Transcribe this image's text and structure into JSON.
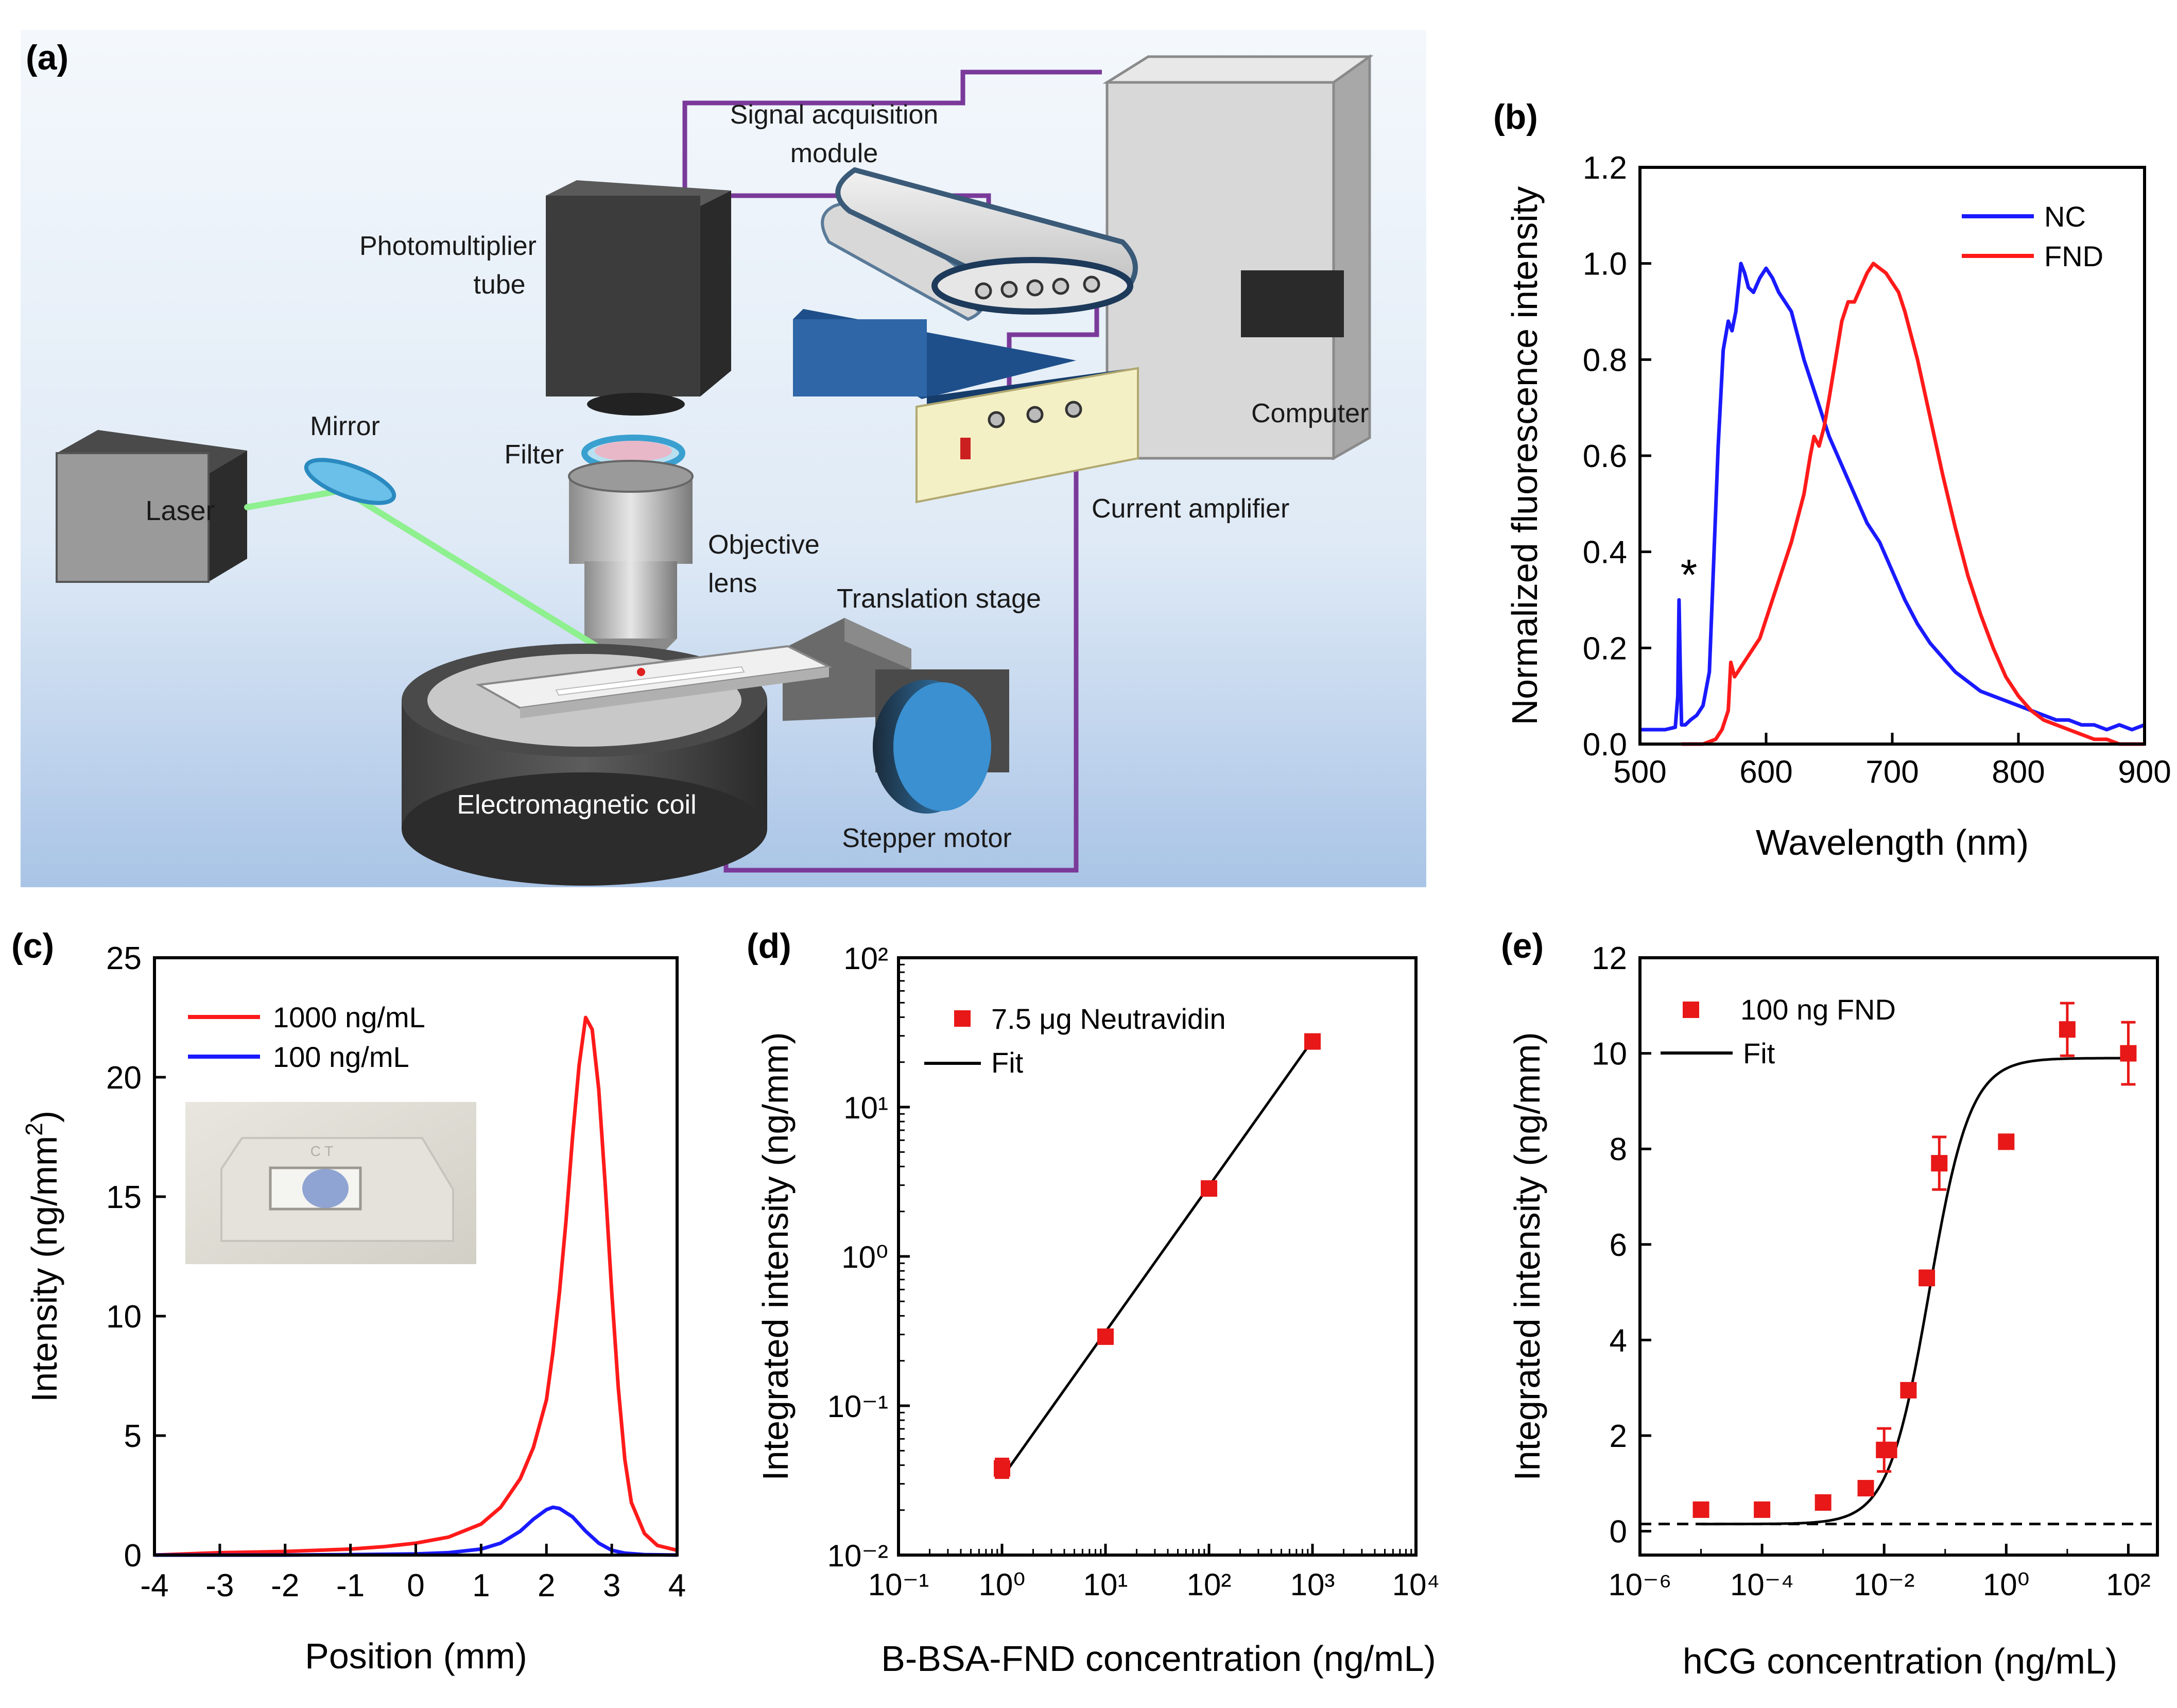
{
  "panel_labels": [
    "(a)",
    "(b)",
    "(c)",
    "(d)",
    "(e)"
  ],
  "colors": {
    "red": "#ff1a1a",
    "blue": "#1a1aff",
    "purple": "#7a3a9a",
    "marker": "#e81818",
    "beam": "#8ef08e"
  },
  "schematic": {
    "icons": [
      "laser-box",
      "mirror",
      "photomultiplier-tube",
      "filter",
      "objective-lens",
      "translation-stage",
      "electromagnetic-coil",
      "stepper-motor",
      "signal-acquisition-module",
      "current-amplifier",
      "computer"
    ],
    "labels": {
      "signal_acquisition_1": "Signal acquisition",
      "signal_acquisition_2": "module",
      "pmt_1": "Photomultiplier",
      "pmt_2": "tube",
      "mirror": "Mirror",
      "filter": "Filter",
      "laser": "Laser",
      "objective_1": "Objective",
      "objective_2": "lens",
      "translation_stage": "Translation stage",
      "current_amplifier": "Current amplifier",
      "computer": "Computer",
      "coil": "Electromagnetic coil",
      "stepper_motor": "Stepper motor"
    }
  },
  "chart_data": [
    {
      "id": "b",
      "type": "line",
      "xlabel": "Wavelength (nm)",
      "ylabel": "Normalized fluorescence intensity",
      "xlim": [
        500,
        900
      ],
      "ylim": [
        0,
        1.2
      ],
      "xticks": [
        500,
        600,
        700,
        800,
        900
      ],
      "yticks": [
        0.0,
        0.2,
        0.4,
        0.6,
        0.8,
        1.0,
        1.2
      ],
      "ytick_labels": [
        "0.0",
        "0.2",
        "0.4",
        "0.6",
        "0.8",
        "1.0",
        "1.2"
      ],
      "legend": [
        "NC",
        "FND"
      ],
      "legend_position": "top-right",
      "annotation": {
        "text": "*",
        "x": 532,
        "y": 0.35
      },
      "series": [
        {
          "name": "NC",
          "color": "#1a1aff",
          "x": [
            500,
            510,
            520,
            528,
            530,
            531,
            532,
            533,
            534,
            536,
            540,
            545,
            550,
            555,
            558,
            562,
            566,
            570,
            573,
            576,
            578,
            580,
            583,
            586,
            590,
            595,
            600,
            605,
            610,
            615,
            620,
            625,
            630,
            640,
            650,
            660,
            670,
            680,
            690,
            700,
            710,
            720,
            730,
            740,
            750,
            760,
            770,
            780,
            790,
            800,
            810,
            820,
            830,
            840,
            850,
            860,
            870,
            880,
            890,
            900
          ],
          "y": [
            0.03,
            0.03,
            0.03,
            0.035,
            0.1,
            0.3,
            0.15,
            0.04,
            0.04,
            0.04,
            0.05,
            0.06,
            0.08,
            0.15,
            0.35,
            0.62,
            0.82,
            0.88,
            0.86,
            0.9,
            0.95,
            1.0,
            0.98,
            0.95,
            0.94,
            0.97,
            0.99,
            0.97,
            0.94,
            0.92,
            0.9,
            0.85,
            0.8,
            0.72,
            0.64,
            0.58,
            0.52,
            0.46,
            0.42,
            0.36,
            0.3,
            0.25,
            0.21,
            0.18,
            0.15,
            0.13,
            0.11,
            0.1,
            0.09,
            0.08,
            0.07,
            0.06,
            0.05,
            0.05,
            0.04,
            0.04,
            0.03,
            0.04,
            0.03,
            0.04
          ]
        },
        {
          "name": "FND",
          "color": "#ff1a1a",
          "x": [
            533,
            540,
            550,
            560,
            565,
            570,
            572,
            575,
            580,
            585,
            590,
            595,
            600,
            610,
            620,
            630,
            635,
            638,
            642,
            646,
            650,
            655,
            660,
            665,
            670,
            675,
            680,
            685,
            690,
            695,
            700,
            705,
            710,
            720,
            730,
            740,
            750,
            760,
            770,
            780,
            790,
            800,
            810,
            820,
            830,
            840,
            850,
            860,
            870,
            880,
            890,
            900
          ],
          "y": [
            0.0,
            0.0,
            0.0,
            0.01,
            0.03,
            0.07,
            0.17,
            0.14,
            0.16,
            0.18,
            0.2,
            0.22,
            0.26,
            0.34,
            0.42,
            0.52,
            0.6,
            0.64,
            0.62,
            0.66,
            0.72,
            0.8,
            0.88,
            0.92,
            0.92,
            0.95,
            0.98,
            1.0,
            0.99,
            0.98,
            0.96,
            0.94,
            0.9,
            0.8,
            0.68,
            0.56,
            0.45,
            0.35,
            0.27,
            0.2,
            0.14,
            0.1,
            0.07,
            0.05,
            0.04,
            0.03,
            0.02,
            0.01,
            0.01,
            0.0,
            0.0,
            0.0
          ]
        }
      ]
    },
    {
      "id": "c",
      "type": "line",
      "xlabel": "Position (mm)",
      "ylabel_main": "Intensity (ng/mm",
      "ylabel_sup": "2",
      "ylabel_end": ")",
      "xlim": [
        -4,
        4
      ],
      "ylim": [
        0,
        25
      ],
      "xticks": [
        -4,
        -3,
        -2,
        -1,
        0,
        1,
        2,
        3,
        4
      ],
      "yticks": [
        0,
        5,
        10,
        15,
        20,
        25
      ],
      "legend": [
        "1000 ng/mL",
        "100 ng/mL"
      ],
      "legend_position": "top-left",
      "inset": {
        "strip_marks": "C T"
      },
      "series": [
        {
          "name": "1000 ng/mL",
          "color": "#ff1a1a",
          "x": [
            -4,
            -3,
            -2,
            -1,
            -0.5,
            0,
            0.5,
            1.0,
            1.3,
            1.6,
            1.8,
            2.0,
            2.1,
            2.2,
            2.3,
            2.4,
            2.5,
            2.6,
            2.7,
            2.8,
            2.9,
            3.0,
            3.1,
            3.2,
            3.3,
            3.5,
            3.7,
            4.0
          ],
          "y": [
            0.0,
            0.1,
            0.15,
            0.25,
            0.35,
            0.5,
            0.75,
            1.3,
            2.0,
            3.2,
            4.5,
            6.5,
            8.5,
            11.0,
            14.0,
            17.5,
            20.5,
            22.5,
            22.0,
            19.5,
            15.5,
            11.0,
            7.0,
            4.0,
            2.2,
            0.9,
            0.4,
            0.2
          ]
        },
        {
          "name": "100 ng/mL",
          "color": "#1a1aff",
          "x": [
            -4,
            -2,
            -1,
            0,
            0.5,
            1.0,
            1.3,
            1.6,
            1.8,
            2.0,
            2.1,
            2.2,
            2.4,
            2.6,
            2.8,
            3.0,
            3.2,
            3.5,
            4.0
          ],
          "y": [
            0.0,
            0.0,
            0.02,
            0.05,
            0.1,
            0.25,
            0.5,
            1.0,
            1.5,
            1.9,
            2.0,
            1.95,
            1.6,
            1.0,
            0.5,
            0.2,
            0.08,
            0.02,
            0.0
          ]
        }
      ]
    },
    {
      "id": "d",
      "type": "scatter",
      "xscale": "log",
      "yscale": "log",
      "xlabel": "B-BSA-FND concentration (ng/mL)",
      "ylabel": "Integrated intensity (ng/mm)",
      "xlim": [
        0.1,
        10000
      ],
      "ylim": [
        0.01,
        100
      ],
      "xtick_exps": [
        -1,
        0,
        1,
        2,
        3,
        4
      ],
      "ytick_exps": [
        -2,
        -1,
        0,
        1,
        2
      ],
      "legend": [
        "7.5 μg Neutravidin",
        "Fit"
      ],
      "legend_position": "top-left",
      "series": [
        {
          "name": "7.5 μg Neutravidin",
          "color": "#e81818",
          "x": [
            1,
            10,
            100,
            1000
          ],
          "y": [
            0.038,
            0.29,
            2.85,
            27.5
          ],
          "yerr_low": [
            0.033,
            0.29,
            2.85,
            27.5
          ],
          "yerr_high": [
            0.044,
            0.29,
            2.85,
            27.5
          ]
        },
        {
          "name": "Fit",
          "color": "#000000",
          "x": [
            1,
            1000
          ],
          "y": [
            0.033,
            28.0
          ]
        }
      ]
    },
    {
      "id": "e",
      "type": "scatter",
      "xscale": "log",
      "xlabel": "hCG concentration (ng/mL)",
      "ylabel": "Integrated intensity (ng/mm)",
      "xlim": [
        1e-06,
        300
      ],
      "ylim": [
        -0.5,
        12
      ],
      "xtick_exps": [
        -6,
        -4,
        -2,
        0,
        2
      ],
      "yticks": [
        0,
        2,
        4,
        6,
        8,
        10,
        12
      ],
      "legend": [
        "100 ng FND",
        "Fit"
      ],
      "legend_position": "top-left",
      "baseline": 0.15,
      "fit": {
        "bottom": 0.15,
        "top": 9.9,
        "ec50": 0.055,
        "hill": 1.3
      },
      "series": [
        {
          "name": "100 ng FND",
          "color": "#e81818",
          "x": [
            1e-05,
            0.0001,
            0.001,
            0.005,
            0.01,
            0.012,
            0.025,
            0.05,
            0.08,
            1,
            10,
            100
          ],
          "y": [
            0.45,
            0.45,
            0.6,
            0.9,
            1.7,
            1.7,
            2.95,
            5.3,
            7.7,
            8.15,
            10.5,
            10.0
          ],
          "yerr": [
            0.0,
            0.0,
            0.0,
            0.0,
            0.45,
            0.0,
            0.0,
            0.15,
            0.55,
            0.0,
            0.55,
            0.65
          ]
        }
      ]
    }
  ]
}
